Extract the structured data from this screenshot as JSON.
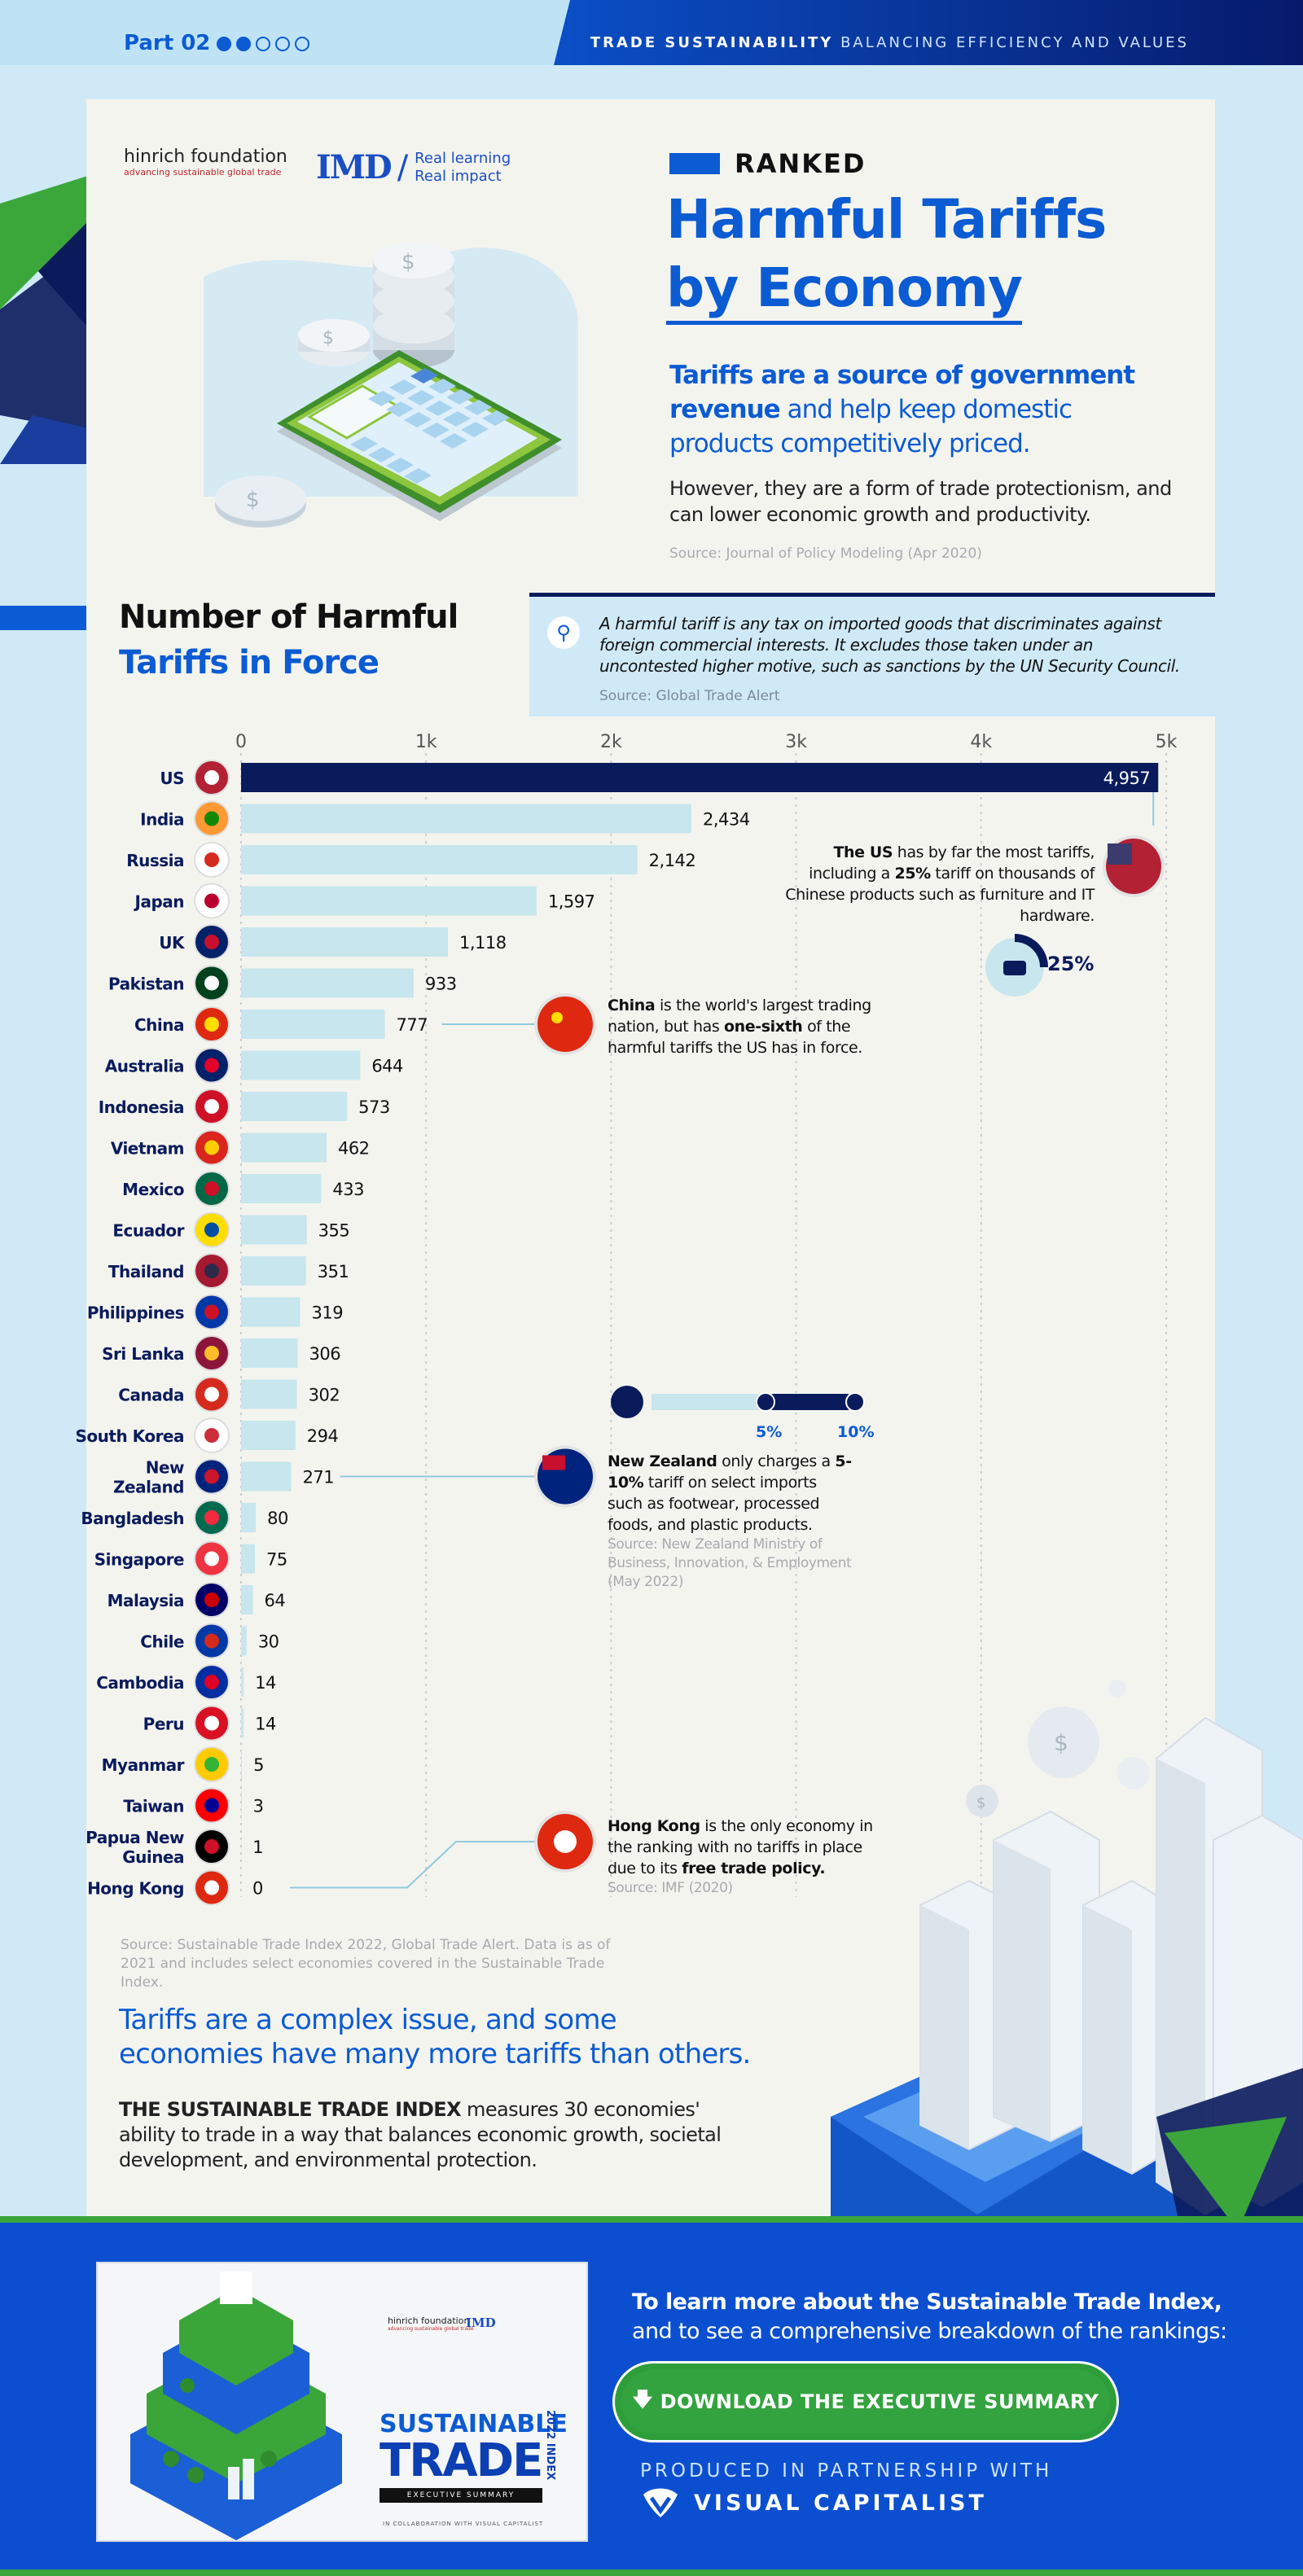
{
  "header": {
    "part": "Part 02",
    "tagline_bold": "TRADE SUSTAINABILITY",
    "tagline_rest": "BALANCING EFFICIENCY AND VALUES"
  },
  "logos": {
    "hinrich_name": "hinrich foundation",
    "hinrich_tag": "advancing sustainable global trade",
    "imd": "IMD",
    "imd_line1": "Real learning",
    "imd_line2": "Real impact"
  },
  "intro": {
    "kicker": "RANKED",
    "title_line1": "Harmful Tariffs",
    "title_line2": "by Economy",
    "lead_bold": "Tariffs are a source of government revenue",
    "lead_rest": " and help keep domestic products competitively priced.",
    "body": "However, they are a form of trade protectionism, and can lower economic growth and productivity.",
    "source": "Source: Journal of Policy Modeling (Apr 2020)"
  },
  "chart_heading": {
    "line1": "Number of Harmful",
    "line2": "Tariffs in Force"
  },
  "definition": {
    "text": "A harmful tariff is any tax on imported goods that discriminates against foreign commercial interests. It excludes those taken under an uncontested higher motive, such as sanctions by the UN Security Council.",
    "source": "Source: Global Trade Alert"
  },
  "chart_data": {
    "type": "bar",
    "orientation": "horizontal",
    "xlim": [
      0,
      5000
    ],
    "ticks": [
      {
        "value": 0,
        "label": "0"
      },
      {
        "value": 1000,
        "label": "1k"
      },
      {
        "value": 2000,
        "label": "2k"
      },
      {
        "value": 3000,
        "label": "3k"
      },
      {
        "value": 4000,
        "label": "4k"
      },
      {
        "value": 5000,
        "label": "5k"
      }
    ],
    "grid": true,
    "categories": [
      "US",
      "India",
      "Russia",
      "Japan",
      "UK",
      "Pakistan",
      "China",
      "Australia",
      "Indonesia",
      "Vietnam",
      "Mexico",
      "Ecuador",
      "Thailand",
      "Philippines",
      "Sri Lanka",
      "Canada",
      "South Korea",
      "New Zealand",
      "Bangladesh",
      "Singapore",
      "Malaysia",
      "Chile",
      "Cambodia",
      "Peru",
      "Myanmar",
      "Taiwan",
      "Papua New Guinea",
      "Hong Kong"
    ],
    "labels": [
      "4,957",
      "2,434",
      "2,142",
      "1,597",
      "1,118",
      "933",
      "777",
      "644",
      "573",
      "462",
      "433",
      "355",
      "351",
      "319",
      "306",
      "302",
      "294",
      "271",
      "80",
      "75",
      "64",
      "30",
      "14",
      "14",
      "5",
      "3",
      "1",
      "0"
    ],
    "values": [
      4957,
      2434,
      2142,
      1597,
      1118,
      933,
      777,
      644,
      573,
      462,
      433,
      355,
      351,
      319,
      306,
      302,
      294,
      271,
      80,
      75,
      64,
      30,
      14,
      14,
      5,
      3,
      1,
      0
    ],
    "source": "Source: Sustainable Trade Index 2022, Global Trade Alert. Data is as of 2021 and includes select economies covered in the Sustainable Trade Index."
  },
  "annotations": {
    "us_bold": "The US",
    "us_text1": " has by far the most tariffs, including a ",
    "us_pct": "25%",
    "us_text2": " tariff on thousands of Chinese products such as furniture and IT hardware.",
    "us_badge": "25%",
    "china_bold": "China",
    "china_text1": " is the world's largest trading nation, but has ",
    "china_bold2": "one-sixth",
    "china_text2": " of the harmful tariffs the US has in force.",
    "nz_scale_low": "5%",
    "nz_scale_high": "10%",
    "nz_bold": "New Zealand",
    "nz_text1": " only charges a ",
    "nz_bold2": "5-10%",
    "nz_text2": " tariff on select imports such as footwear, processed foods, and plastic products.",
    "nz_source": "Source: New Zealand Ministry of Business, Innovation, & Employment (May 2022)",
    "hk_bold": "Hong Kong",
    "hk_text1": " is the only economy in the ranking with no tariffs in place due to its ",
    "hk_bold2": "free trade policy.",
    "hk_source": "Source: IMF (2020)"
  },
  "closing": {
    "headline": "Tariffs are a complex issue, and some economies have many more tariffs than others.",
    "bold": "THE SUSTAINABLE TRADE INDEX",
    "rest": " measures 30 economies' ability to trade in a way that balances economic growth, societal development, and environmental protection."
  },
  "footer": {
    "thumb_title1": "SUSTAINABLE",
    "thumb_title2": "TRADE",
    "thumb_year": "2022 INDEX",
    "thumb_sub": "EXECUTIVE SUMMARY",
    "thumb_collab": "IN COLLABORATION WITH  VISUAL CAPITALIST",
    "learn_bold": "To learn more about the Sustainable Trade Index,",
    "learn_rest": "and to see a comprehensive breakdown of the rankings:",
    "download": "DOWNLOAD THE EXECUTIVE SUMMARY",
    "produced": "PRODUCED IN PARTNERSHIP WITH",
    "vc": "VISUAL CAPITALIST"
  },
  "colors": {
    "accent": "#0b5bd3",
    "navy": "#0a1b5c",
    "bar": "#c7e6ee",
    "green": "#33a33f"
  }
}
